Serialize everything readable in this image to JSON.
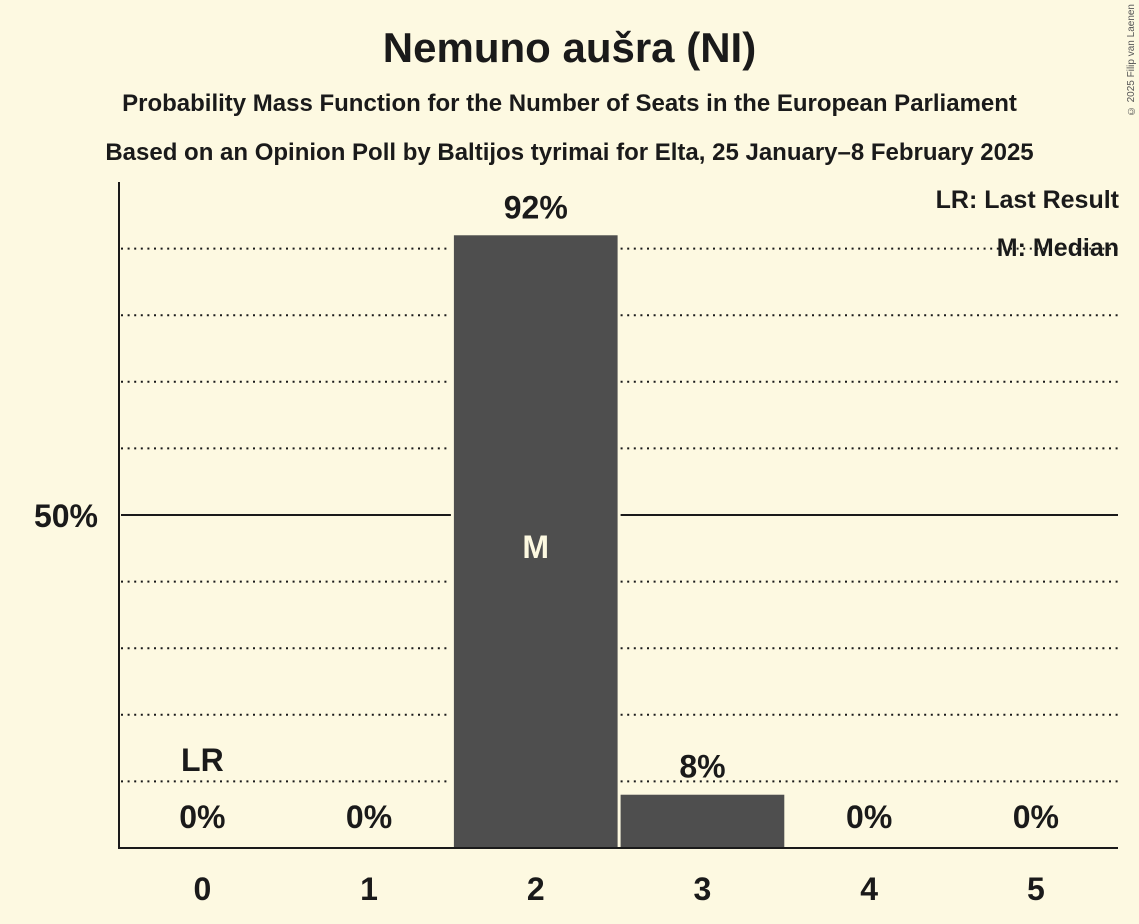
{
  "header": {
    "title": "Nemuno aušra (NI)",
    "subtitle": "Probability Mass Function for the Number of Seats in the European Parliament",
    "source": "Based on an Opinion Poll by Baltijos tyrimai for Elta, 25 January–8 February 2025",
    "copyright": "© 2025 Filip van Laenen"
  },
  "legend": {
    "last_result": "LR: Last Result",
    "median": "M: Median"
  },
  "colors": {
    "background": "#fdf9e1",
    "bar": "#4e4e4e",
    "text": "#1a1a1a"
  },
  "chart_data": {
    "type": "bar",
    "title": "Nemuno aušra (NI)",
    "subtitle": "Probability Mass Function for the Number of Seats in the European Parliament",
    "xlabel": "",
    "ylabel": "",
    "categories": [
      "0",
      "1",
      "2",
      "3",
      "4",
      "5"
    ],
    "values": [
      0,
      0,
      92,
      8,
      0,
      0
    ],
    "value_labels": [
      "0%",
      "0%",
      "92%",
      "8%",
      "0%",
      "0%"
    ],
    "ylim": [
      0,
      100
    ],
    "y_tick_labels": [
      {
        "value": 50,
        "label": "50%"
      }
    ],
    "gridlines": [
      10,
      20,
      30,
      40,
      50,
      60,
      70,
      80,
      90
    ],
    "grid": true,
    "annotations": [
      {
        "category": "0",
        "text": "LR",
        "meaning": "Last Result"
      },
      {
        "category": "2",
        "text": "M",
        "meaning": "Median"
      }
    ],
    "legend_position": "top-right"
  }
}
